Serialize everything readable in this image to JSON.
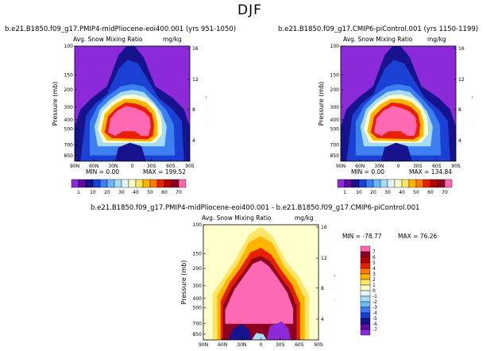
{
  "figure_title": "DJF",
  "colors": {
    "levels": [
      "#8c2ad9",
      "#5b0f9c",
      "#17128d",
      "#1a40d4",
      "#3b7ff0",
      "#6fb6f5",
      "#a6dcf8",
      "#e3f4fb",
      "#ffffcc",
      "#ffe566",
      "#ffb400",
      "#ff7a00",
      "#e82000",
      "#b40000",
      "#8c0022",
      "#ff69b4"
    ],
    "diff": [
      "#8c2ad9",
      "#5b0f9c",
      "#17128d",
      "#1a40d4",
      "#3b7ff0",
      "#6fb6f5",
      "#a6dcf8",
      "#e3f4fb",
      "#ffffcc",
      "#ffe566",
      "#ffb400",
      "#ff7a00",
      "#e82000",
      "#b40000",
      "#8c0022",
      "#ff69b4"
    ]
  },
  "chart_data": [
    {
      "type": "heatmap",
      "title": "b.e21.B1850.f09_g17.PMIP4-midPliocene-eoi400.001 (yrs 951-1050)",
      "subtitle": "Avg. Snow Mixing Ratio",
      "units": "mg/kg",
      "xlabel": "",
      "ylabel": "Pressure (mb)",
      "y2label": "Height (km)",
      "x_ticks": [
        "90N",
        "60N",
        "30N",
        "0",
        "30S",
        "60S",
        "90S"
      ],
      "y_ticks": [
        "100",
        "150",
        "200",
        "300",
        "400",
        "500",
        "700",
        "850"
      ],
      "y2_ticks": [
        "4",
        "8",
        "12",
        "16"
      ],
      "min_label": "MIN =    0.00",
      "max_label": "MAX = 199.52",
      "colorbar_labels": [
        "1",
        "10",
        "20",
        "30",
        "40",
        "50",
        "60",
        "70"
      ],
      "colorbar_levels": [
        1,
        5,
        10,
        15,
        20,
        25,
        30,
        35,
        40,
        45,
        50,
        55,
        60,
        65,
        70
      ]
    },
    {
      "type": "heatmap",
      "title": "b.e21.B1850.f09_g17.CMIP6-piControl.001 (yrs 1150-1199)",
      "subtitle": "Avg. Snow Mixing Ratio",
      "units": "mg/kg",
      "xlabel": "",
      "ylabel": "Pressure (mb)",
      "y2label": "Height (km)",
      "x_ticks": [
        "90N",
        "60N",
        "30N",
        "0",
        "30S",
        "60S",
        "90S"
      ],
      "y_ticks": [
        "100",
        "150",
        "200",
        "300",
        "400",
        "500",
        "700",
        "850"
      ],
      "y2_ticks": [
        "4",
        "8",
        "12",
        "16"
      ],
      "min_label": "MIN =    0.00",
      "max_label": "MAX = 134.84",
      "colorbar_labels": [
        "1",
        "10",
        "20",
        "30",
        "40",
        "50",
        "60",
        "70"
      ],
      "colorbar_levels": [
        1,
        5,
        10,
        15,
        20,
        25,
        30,
        35,
        40,
        45,
        50,
        55,
        60,
        65,
        70
      ]
    },
    {
      "type": "heatmap",
      "title": "b.e21.B1850.f09_g17.PMIP4-midPliocene-eoi400.001  -  b.e21.B1850.f09_g17.CMIP6-piControl.001",
      "subtitle": "Avg. Snow Mixing Ratio",
      "units": "mg/kg",
      "xlabel": "",
      "ylabel": "Pressure (mb)",
      "y2label": "Height (km)",
      "x_ticks": [
        "90N",
        "60N",
        "30N",
        "0",
        "30S",
        "60S",
        "90S"
      ],
      "y_ticks": [
        "100",
        "150",
        "200",
        "300",
        "400",
        "500",
        "700",
        "850"
      ],
      "y2_ticks": [
        "4",
        "8",
        "12",
        "16"
      ],
      "min_label": "MIN = -78.77",
      "max_label": "MAX =  76.26",
      "colorbar_labels": [
        "7",
        "6",
        "5",
        "4",
        "3",
        "2",
        "1",
        "0",
        "-1",
        "-2",
        "-3",
        "-4",
        "-5",
        "-6",
        "-7"
      ],
      "colorbar_levels": [
        -7,
        -6,
        -5,
        -4,
        -3,
        -2,
        -1,
        0,
        1,
        2,
        3,
        4,
        5,
        6,
        7
      ]
    }
  ]
}
